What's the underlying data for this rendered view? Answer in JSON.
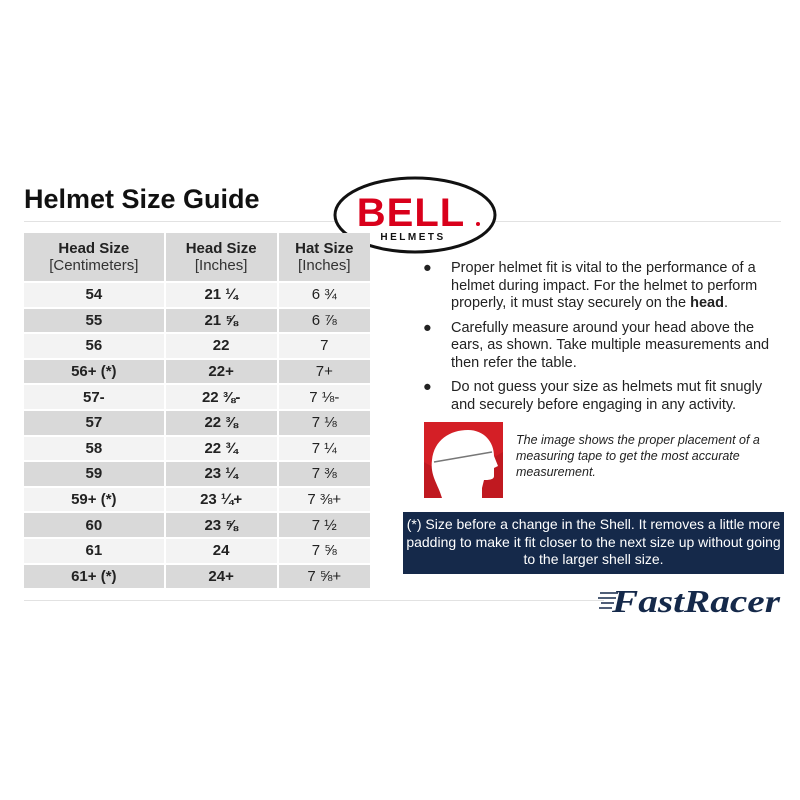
{
  "title": "Helmet Size Guide",
  "logo": {
    "brand": "BELL",
    "sub": "HELMETS",
    "color": "#d9001b"
  },
  "table": {
    "headers": [
      {
        "line1": "Head Size",
        "line2": "[Centimeters]"
      },
      {
        "line1": "Head Size",
        "line2": "[Inches]"
      },
      {
        "line1": "Hat Size",
        "line2": "[Inches]"
      }
    ],
    "rows": [
      [
        "54",
        "21 ¼",
        "6 ¾"
      ],
      [
        "55",
        "21 ⅝",
        "6 ⅞"
      ],
      [
        "56",
        "22",
        "7"
      ],
      [
        "56+ (*)",
        "22+",
        "7+"
      ],
      [
        "57-",
        "22 ⅜-",
        "7 ⅛-"
      ],
      [
        "57",
        "22 ⅜",
        "7 ⅛"
      ],
      [
        "58",
        "22 ¾",
        "7 ¼"
      ],
      [
        "59",
        "23 ¼",
        "7 ⅜"
      ],
      [
        "59+ (*)",
        "23 ¼+",
        "7 ⅜+"
      ],
      [
        "60",
        "23 ⅝",
        "7 ½"
      ],
      [
        "61",
        "24",
        "7 ⅝"
      ],
      [
        "61+ (*)",
        "24+",
        "7 ⅝+"
      ]
    ]
  },
  "bullets": [
    {
      "text": "Proper helmet fit is vital to the performance of a helmet during impact. For the helmet to perform properly, it must stay securely on the ",
      "bold": "head",
      "end": "."
    },
    {
      "text": "Carefully measure around your head above the ears, as shown. Take multiple measurements and then refer the table.",
      "bold": "",
      "end": ""
    },
    {
      "text": "Do not guess your size as helmets mut fit snugly and securely before engaging in any activity.",
      "bold": "",
      "end": ""
    }
  ],
  "image_caption": "The image shows the proper placement of a measuring tape to get the most accurate measurement.",
  "note": "(*) Size before a change in the Shell. It removes a little more padding to make it fit closer to the next size up without going to the larger shell size.",
  "brand_logo": {
    "text": "FastRacer",
    "color": "#15294a"
  },
  "colors": {
    "note_bg": "#15294a",
    "row_light": "#f3f3f3",
    "row_dark": "#d9d9d9",
    "head_icon_bg": "#d41f26"
  }
}
